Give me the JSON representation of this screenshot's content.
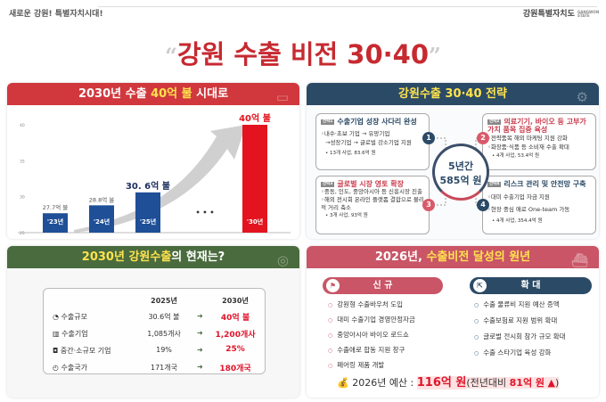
{
  "header": {
    "slogan": "새로운 강원! 특별자치시대!",
    "logo": "강원특별자치도",
    "logo_en": "GANGWON STATE"
  },
  "title": "강원 수출 비전 30·40",
  "panel_chart": {
    "title_pre": "2030년 수출 ",
    "title_hl": "40억 불",
    "title_post": " 시대로",
    "color": "#d0383d"
  },
  "chart_data": {
    "type": "bar",
    "categories": [
      "'23년",
      "'24년",
      "'25년",
      "'30년"
    ],
    "values": [
      27.7,
      28.8,
      30.6,
      40
    ],
    "data_labels": [
      "27.7억 불",
      "28.8억 불",
      "30. 6억 불",
      "40억 불"
    ],
    "ylim": [
      25,
      40
    ],
    "yticks": [
      "25",
      "30",
      "35",
      "40"
    ],
    "ellipsis": "• • •",
    "colors": [
      "#1e4f97",
      "#1e4f97",
      "#1e4f97",
      "#e3141f"
    ]
  },
  "panel_strategy": {
    "title": "강원수출 30·40 전략",
    "color": "#2b4a66",
    "center_line1": "5년간",
    "center_line2": "585억 원",
    "items": [
      {
        "tag": "전략1",
        "num": "1",
        "title": "수출기업 성장 사다리 완성",
        "lines": [
          "◦내수·초보 기업 → 유망기업",
          "→성장기업 → 글로벌 강소기업 지원"
        ],
        "budget": "• 13개 사업, 83.6억 원"
      },
      {
        "tag": "전략2",
        "num": "2",
        "title": "의료기기, 바이오 등 고부가가치 품목 집중 육성",
        "lines": [
          "◦전략품목 해외 마케팅 지원 강화",
          "◦화장품·식품 등 소비재 수출 확대"
        ],
        "budget": "• 4개 사업, 53.4억 원"
      },
      {
        "tag": "전략3",
        "num": "3",
        "title": "글로벌 시장 영토 확장",
        "lines": [
          "◦중동, 인도, 중앙아시아 등 신흥시장 진출",
          "◦해외 전시회 온라인 플랫폼 결합으로 물리적 거리 축소"
        ],
        "budget": "• 3개 사업, 93억 원"
      },
      {
        "tag": "전략4",
        "num": "4",
        "title": "리스크 관리 및 안전망 구축",
        "lines": [
          "◦대미 수출기업 자금 지원",
          "◦현장 중심 애로 One-team 가동"
        ],
        "budget": "• 4개 사업, 354.4억 원"
      }
    ]
  },
  "panel_status": {
    "title_hl": "2030년 강원수출",
    "title_post": "의 현재는?",
    "color": "#4a6b3e",
    "col_2025": "2025년",
    "col_2030": "2030년",
    "rows": [
      {
        "icon": "pie-chart",
        "label": "수출규모",
        "v2025": "30.6억 불",
        "v2030": "40억 불"
      },
      {
        "icon": "building",
        "label": "수출기업",
        "v2025": "1,085개사",
        "v2030": "1,200개사"
      },
      {
        "icon": "shop",
        "label": "중간·소규모 기업",
        "v2025": "19%",
        "v2030": "25%"
      },
      {
        "icon": "globe",
        "label": "수출국가",
        "v2025": "171개국",
        "v2030": "180개국"
      }
    ]
  },
  "panel_2026": {
    "title_pre": "2026년, ",
    "title_hl": "수출비전 달성의 원년",
    "color": "#c95566",
    "new_label": "신 규",
    "expand_label": "확 대",
    "new_items": [
      "강원형 수출바우처 도입",
      "대미 수출기업 경영안정자금",
      "중앙아시아 바이오 로드쇼",
      "수출애로 합동 지원 창구",
      "페어링 제품 개발"
    ],
    "expand_items": [
      "수출 물류비 지원 예산 증액",
      "수출보험료 지원 범위 확대",
      "글로벌 전시회 참가 규모 확대",
      "수출 스타기업 육성 강화"
    ],
    "budget_label": "2026년 예산 : ",
    "budget_value": "116억 원",
    "budget_note_pre": "(전년대비 ",
    "budget_note_val": "81억 원",
    "budget_note_post": ")"
  }
}
